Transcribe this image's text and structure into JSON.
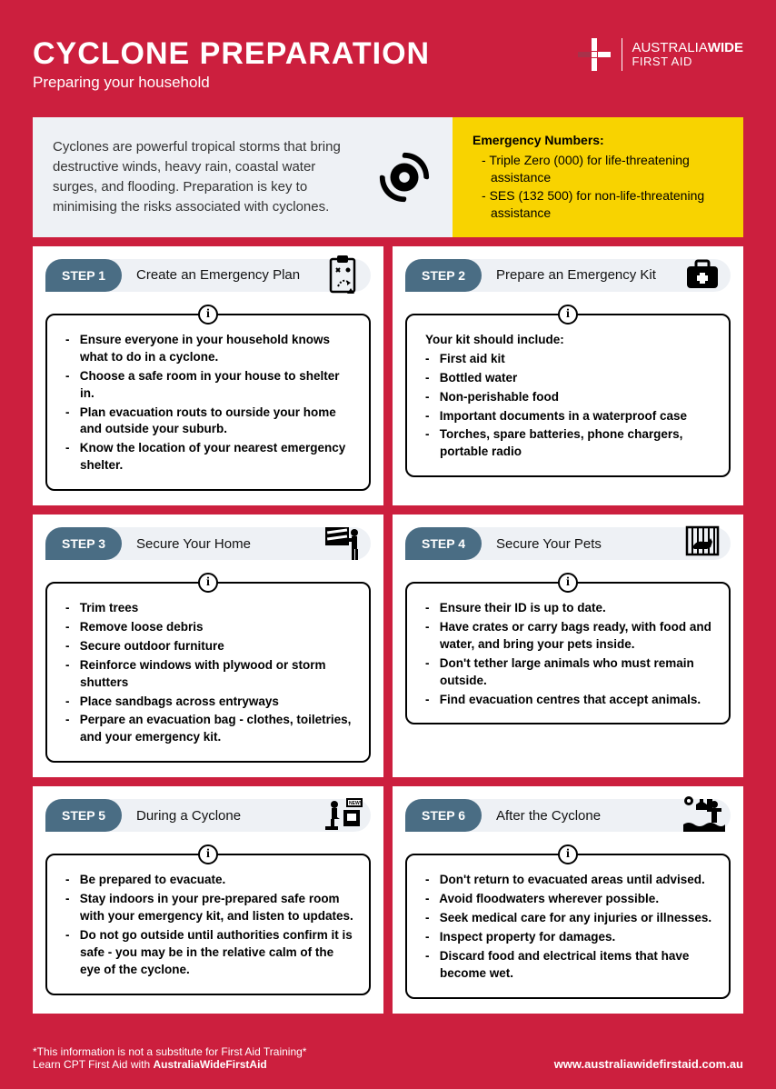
{
  "colors": {
    "page_bg": "#cc1f3e",
    "intro_bg": "#eef1f5",
    "emergency_bg": "#f8d300",
    "badge_bg": "#4a6d84",
    "card_bg": "#ffffff",
    "text_white": "#ffffff",
    "text_dark": "#111111"
  },
  "header": {
    "title": "CYCLONE PREPARATION",
    "subtitle": "Preparing your household",
    "brand_top": "AUSTRALIA",
    "brand_top_bold": "WIDE",
    "brand_bottom": "FIRST AID"
  },
  "intro": {
    "text": "Cyclones are powerful tropical storms that bring destructive winds, heavy rain, coastal water surges, and flooding. Preparation is key to minimising the risks associated with cyclones."
  },
  "emergency": {
    "title": "Emergency Numbers:",
    "items": [
      "Triple Zero (000) for life-threatening assistance",
      "SES (132 500) for non-life-threatening assistance"
    ]
  },
  "steps": [
    {
      "badge": "STEP 1",
      "title": "Create an Emergency Plan",
      "intro": "",
      "bullets": [
        "Ensure everyone in your household knows what to do in a cyclone.",
        "Choose a safe room in your house to shelter in.",
        "Plan evacuation routs to ourside your home and outside your suburb.",
        "Know the location of your nearest emergency shelter."
      ]
    },
    {
      "badge": "STEP 2",
      "title": "Prepare an Emergency Kit",
      "intro": "Your kit should include:",
      "bullets": [
        "First aid kit",
        "Bottled water",
        "Non-perishable food",
        "Important documents in a waterproof case",
        "Torches, spare batteries, phone chargers, portable radio"
      ]
    },
    {
      "badge": "STEP 3",
      "title": "Secure Your Home",
      "intro": "",
      "bullets": [
        "Trim trees",
        "Remove loose debris",
        "Secure outdoor furniture",
        "Reinforce windows with plywood or storm shutters",
        "Place sandbags across entryways",
        "Perpare an evacuation bag - clothes, toiletries, and your emergency kit."
      ]
    },
    {
      "badge": "STEP 4",
      "title": "Secure Your Pets",
      "intro": "",
      "bullets": [
        "Ensure their ID is up to date.",
        "Have crates or carry bags ready, with food and water, and bring your pets inside.",
        "Don't tether large animals who must remain outside.",
        "Find evacuation centres that accept animals."
      ]
    },
    {
      "badge": "STEP 5",
      "title": "During a Cyclone",
      "intro": "",
      "bullets": [
        "Be prepared to evacuate.",
        "Stay indoors in your pre-prepared safe room with your emergency kit, and listen to updates.",
        "Do not go outside until authorities confirm it is safe - you may be in the relative calm of the eye of the cyclone."
      ]
    },
    {
      "badge": "STEP 6",
      "title": "After the Cyclone",
      "intro": "",
      "bullets": [
        "Don't return to evacuated areas until advised.",
        "Avoid floodwaters wherever possible.",
        "Seek medical care for any injuries or illnesses.",
        "Inspect property for damages.",
        "Discard food and electrical items that have become wet."
      ]
    }
  ],
  "footer": {
    "disclaimer": "*This information is not a substitute for First Aid Training*",
    "learn": "Learn CPT First Aid with ",
    "learn_bold": "AustraliaWideFirstAid",
    "url": "www.australiawidefirstaid.com.au"
  }
}
